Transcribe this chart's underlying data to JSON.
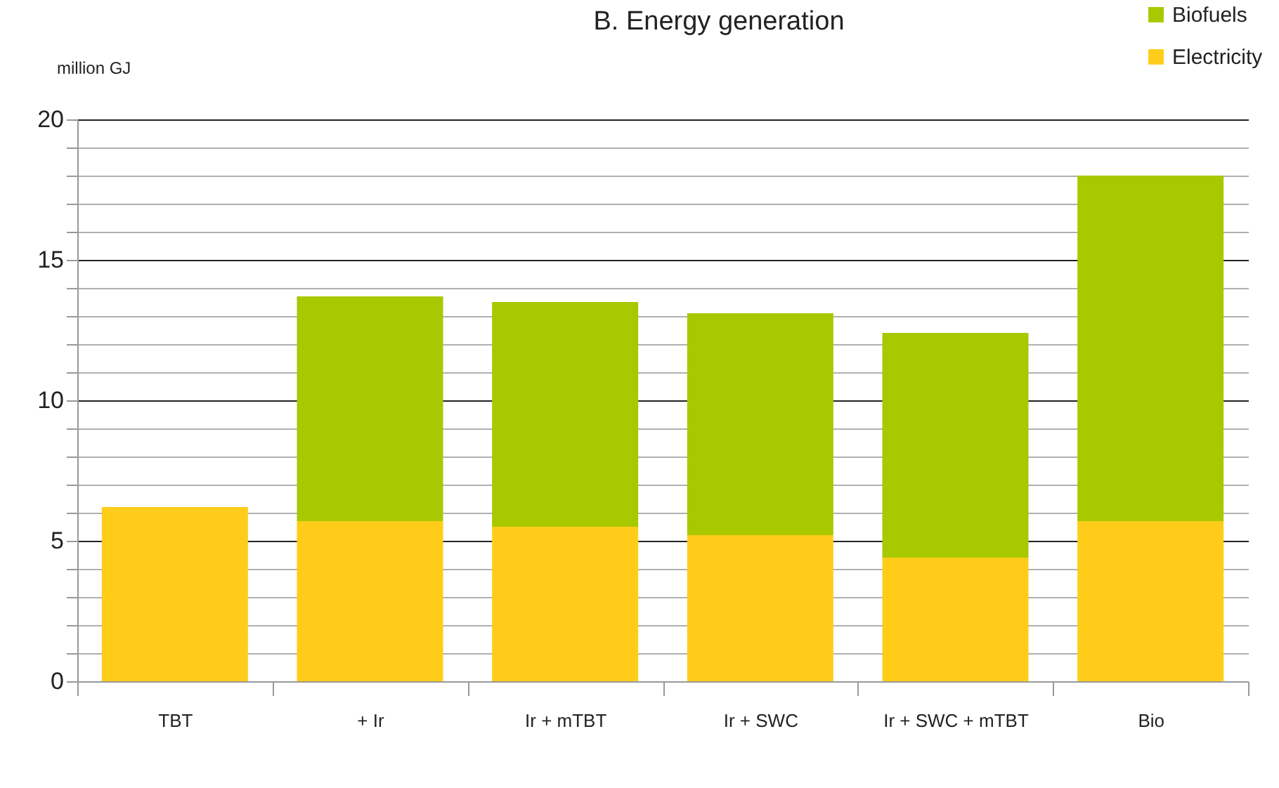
{
  "chart_data": {
    "type": "bar",
    "title": "B. Energy generation",
    "ylabel": "million GJ",
    "categories": [
      "TBT",
      "+ Ir",
      "Ir + mTBT",
      "Ir + SWC",
      "Ir + SWC + mTBT",
      "Bio"
    ],
    "series": [
      {
        "name": "Electricity",
        "color": "#ffcc1a",
        "values": [
          6.2,
          5.7,
          5.5,
          5.2,
          4.4,
          5.7
        ]
      },
      {
        "name": "Biofuels",
        "color": "#a8c800",
        "values": [
          null,
          8.0,
          8.0,
          7.9,
          8.0,
          12.3
        ]
      }
    ],
    "stacked": true,
    "ylim": [
      0,
      20
    ],
    "yticks": [
      0,
      {
        "value": 1,
        "label": null
      },
      {
        "value": 2,
        "label": null
      },
      {
        "value": 3,
        "label": null
      },
      {
        "value": 4,
        "label": null
      },
      5,
      {
        "value": 6,
        "label": null
      },
      {
        "value": 7,
        "label": null
      },
      {
        "value": 8,
        "label": null
      },
      {
        "value": 9,
        "label": null
      },
      10,
      {
        "value": 11,
        "label": null
      },
      {
        "value": 12,
        "label": null
      },
      {
        "value": 13,
        "label": null
      },
      {
        "value": 14,
        "label": null
      },
      15,
      {
        "value": 16,
        "label": null
      },
      {
        "value": 17,
        "label": null
      },
      {
        "value": 18,
        "label": null
      },
      {
        "value": 19,
        "label": null
      },
      20
    ],
    "grid": true,
    "legend": "top right"
  }
}
